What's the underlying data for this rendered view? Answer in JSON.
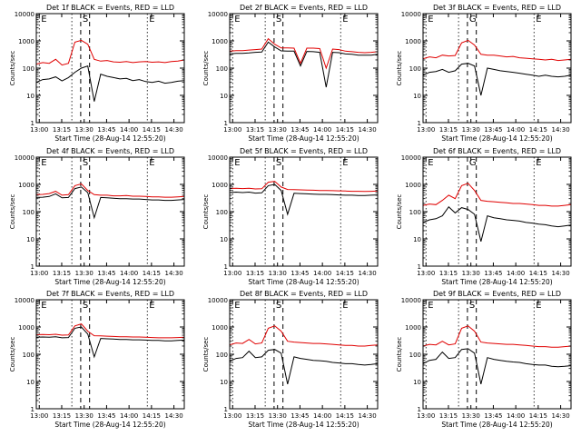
{
  "figure": {
    "background": "#ffffff"
  },
  "chart_data": [
    {
      "type": "line",
      "title": "Det 1f BLACK = Events, RED = LLD",
      "xlabel": "Start Time (28-Aug-14 12:55:20)",
      "ylabel": "Counts/sec",
      "xlim": [
        0,
        100
      ],
      "ylim": [
        1,
        10000
      ],
      "yscale": "log",
      "grid": false,
      "x_ticks": [
        "13:00",
        "13:15",
        "13:30",
        "13:45",
        "14:00",
        "14:15",
        "14:30"
      ],
      "y_ticks": [
        "1",
        "10",
        "100",
        "1000",
        "10000"
      ],
      "markers": [
        {
          "x": 2.0,
          "style": "dotted",
          "label": "E"
        },
        {
          "x": 24.0,
          "style": "dotted",
          "label": ""
        },
        {
          "x": 30.0,
          "style": "dashed",
          "label": "S"
        },
        {
          "x": 36.0,
          "style": "dashed",
          "label": ""
        },
        {
          "x": 75.0,
          "style": "dotted",
          "label": "E"
        }
      ],
      "series": [
        {
          "color": "#e00000",
          "values": [
            140,
            160,
            150,
            210,
            130,
            150,
            900,
            1050,
            750,
            210,
            180,
            190,
            170,
            165,
            175,
            160,
            170,
            175,
            165,
            170,
            160,
            175,
            180,
            200
          ]
        },
        {
          "color": "#000000",
          "values": [
            30,
            38,
            40,
            48,
            34,
            45,
            70,
            100,
            120,
            6,
            60,
            50,
            45,
            40,
            42,
            35,
            38,
            32,
            30,
            33,
            28,
            30,
            33,
            35
          ]
        }
      ]
    },
    {
      "type": "line",
      "title": "Det 2f BLACK = Events, RED = LLD",
      "xlabel": "Start Time (28-Aug-14 12:55:20)",
      "ylabel": "Counts/sec",
      "xlim": [
        0,
        100
      ],
      "ylim": [
        1,
        10000
      ],
      "yscale": "log",
      "grid": false,
      "x_ticks": [
        "13:00",
        "13:15",
        "13:30",
        "13:45",
        "14:00",
        "14:15",
        "14:30"
      ],
      "y_ticks": [
        "1",
        "10",
        "100",
        "1000",
        "10000"
      ],
      "markers": [
        {
          "x": 2.0,
          "style": "dotted",
          "label": "E"
        },
        {
          "x": 24.0,
          "style": "dotted",
          "label": ""
        },
        {
          "x": 30.0,
          "style": "dashed",
          "label": "S"
        },
        {
          "x": 36.0,
          "style": "dashed",
          "label": ""
        },
        {
          "x": 75.0,
          "style": "dotted",
          "label": "E"
        }
      ],
      "series": [
        {
          "color": "#e00000",
          "values": [
            420,
            440,
            440,
            460,
            480,
            500,
            1200,
            750,
            550,
            550,
            540,
            150,
            540,
            540,
            520,
            100,
            500,
            480,
            420,
            400,
            380,
            370,
            380,
            400
          ]
        },
        {
          "color": "#000000",
          "values": [
            330,
            350,
            350,
            360,
            380,
            390,
            900,
            600,
            430,
            420,
            420,
            120,
            410,
            400,
            380,
            20,
            380,
            370,
            330,
            320,
            300,
            300,
            300,
            320
          ]
        }
      ]
    },
    {
      "type": "line",
      "title": "Det 3f BLACK = Events, RED = LLD",
      "xlabel": "Start Time (28-Aug-14 12:55:20)",
      "ylabel": "Counts/sec",
      "xlim": [
        0,
        100
      ],
      "ylim": [
        1,
        10000
      ],
      "yscale": "log",
      "grid": false,
      "x_ticks": [
        "13:00",
        "13:15",
        "13:30",
        "13:45",
        "14:00",
        "14:15",
        "14:30"
      ],
      "y_ticks": [
        "1",
        "10",
        "100",
        "1000",
        "10000"
      ],
      "markers": [
        {
          "x": 2.0,
          "style": "dotted",
          "label": "E"
        },
        {
          "x": 24.0,
          "style": "dotted",
          "label": ""
        },
        {
          "x": 30.0,
          "style": "dashed",
          "label": "G"
        },
        {
          "x": 36.0,
          "style": "dashed",
          "label": ""
        },
        {
          "x": 75.0,
          "style": "dotted",
          "label": "E"
        }
      ],
      "series": [
        {
          "color": "#e00000",
          "values": [
            220,
            260,
            240,
            300,
            280,
            290,
            850,
            1050,
            700,
            320,
            300,
            300,
            280,
            260,
            270,
            240,
            230,
            220,
            210,
            200,
            210,
            190,
            200,
            210
          ]
        },
        {
          "color": "#000000",
          "values": [
            55,
            70,
            75,
            90,
            70,
            80,
            140,
            150,
            120,
            10,
            100,
            90,
            80,
            75,
            70,
            65,
            60,
            55,
            50,
            55,
            50,
            48,
            50,
            55
          ]
        }
      ]
    },
    {
      "type": "line",
      "title": "Det 4f BLACK = Events, RED = LLD",
      "xlabel": "Start Time (28-Aug-14 12:55:20)",
      "ylabel": "Counts/sec",
      "xlim": [
        0,
        100
      ],
      "ylim": [
        1,
        10000
      ],
      "yscale": "log",
      "grid": false,
      "x_ticks": [
        "13:00",
        "13:15",
        "13:30",
        "13:45",
        "14:00",
        "14:15",
        "14:30"
      ],
      "y_ticks": [
        "1",
        "10",
        "100",
        "1000",
        "10000"
      ],
      "markers": [
        {
          "x": 2.0,
          "style": "dotted",
          "label": "E"
        },
        {
          "x": 24.0,
          "style": "dotted",
          "label": ""
        },
        {
          "x": 30.0,
          "style": "dashed",
          "label": "S"
        },
        {
          "x": 36.0,
          "style": "dashed",
          "label": ""
        },
        {
          "x": 75.0,
          "style": "dotted",
          "label": "E"
        }
      ],
      "series": [
        {
          "color": "#e00000",
          "values": [
            420,
            430,
            460,
            560,
            400,
            420,
            900,
            1050,
            600,
            420,
            400,
            400,
            380,
            380,
            390,
            370,
            370,
            360,
            350,
            350,
            340,
            340,
            350,
            360
          ]
        },
        {
          "color": "#000000",
          "values": [
            330,
            340,
            360,
            450,
            320,
            330,
            700,
            800,
            500,
            60,
            330,
            320,
            310,
            300,
            300,
            290,
            290,
            280,
            270,
            270,
            260,
            260,
            270,
            280
          ]
        }
      ]
    },
    {
      "type": "line",
      "title": "Det 5f BLACK = Events, RED = LLD",
      "xlabel": "Start Time (28-Aug-14 12:55:20)",
      "ylabel": "Counts/sec",
      "xlim": [
        0,
        100
      ],
      "ylim": [
        1,
        10000
      ],
      "yscale": "log",
      "grid": false,
      "x_ticks": [
        "13:00",
        "13:15",
        "13:30",
        "13:45",
        "14:00",
        "14:15",
        "14:30"
      ],
      "y_ticks": [
        "1",
        "10",
        "100",
        "1000",
        "10000"
      ],
      "markers": [
        {
          "x": 2.0,
          "style": "dotted",
          "label": "E"
        },
        {
          "x": 24.0,
          "style": "dotted",
          "label": ""
        },
        {
          "x": 30.0,
          "style": "dashed",
          "label": "S"
        },
        {
          "x": 36.0,
          "style": "dashed",
          "label": ""
        },
        {
          "x": 75.0,
          "style": "dotted",
          "label": "E"
        }
      ],
      "series": [
        {
          "color": "#e00000",
          "values": [
            700,
            720,
            700,
            720,
            680,
            690,
            1200,
            1300,
            800,
            650,
            640,
            630,
            620,
            610,
            600,
            600,
            590,
            580,
            570,
            560,
            560,
            550,
            560,
            570
          ]
        },
        {
          "color": "#000000",
          "values": [
            500,
            520,
            500,
            520,
            480,
            490,
            900,
            1000,
            600,
            80,
            470,
            460,
            450,
            440,
            430,
            430,
            420,
            410,
            400,
            400,
            390,
            390,
            400,
            410
          ]
        }
      ]
    },
    {
      "type": "line",
      "title": "Det 6f BLACK = Events, RED = LLD",
      "xlabel": "Start Time (28-Aug-14 12:55:20)",
      "ylabel": "Counts/sec",
      "xlim": [
        0,
        100
      ],
      "ylim": [
        1,
        10000
      ],
      "yscale": "log",
      "grid": false,
      "x_ticks": [
        "13:00",
        "13:15",
        "13:30",
        "13:45",
        "14:00",
        "14:15",
        "14:30"
      ],
      "y_ticks": [
        "1",
        "10",
        "100",
        "1000",
        "10000"
      ],
      "markers": [
        {
          "x": 2.0,
          "style": "dotted",
          "label": "E"
        },
        {
          "x": 24.0,
          "style": "dotted",
          "label": ""
        },
        {
          "x": 30.0,
          "style": "dashed",
          "label": "G"
        },
        {
          "x": 36.0,
          "style": "dashed",
          "label": ""
        },
        {
          "x": 75.0,
          "style": "dotted",
          "label": "E"
        }
      ],
      "series": [
        {
          "color": "#e00000",
          "values": [
            170,
            190,
            180,
            260,
            400,
            300,
            900,
            1100,
            600,
            260,
            240,
            230,
            220,
            210,
            200,
            200,
            190,
            180,
            170,
            170,
            160,
            160,
            170,
            180
          ]
        },
        {
          "color": "#000000",
          "values": [
            40,
            50,
            55,
            70,
            150,
            90,
            140,
            120,
            80,
            8,
            70,
            60,
            55,
            50,
            48,
            45,
            40,
            38,
            35,
            33,
            30,
            28,
            30,
            32
          ]
        }
      ]
    },
    {
      "type": "line",
      "title": "Det 7f BLACK = Events, RED = LLD",
      "xlabel": "Start Time (28-Aug-14 12:55:20)",
      "ylabel": "Counts/sec",
      "xlim": [
        0,
        100
      ],
      "ylim": [
        1,
        10000
      ],
      "yscale": "log",
      "grid": false,
      "x_ticks": [
        "13:00",
        "13:15",
        "13:30",
        "13:45",
        "14:00",
        "14:15",
        "14:30"
      ],
      "y_ticks": [
        "1",
        "10",
        "100",
        "1000",
        "10000"
      ],
      "markers": [
        {
          "x": 2.0,
          "style": "dotted",
          "label": "E"
        },
        {
          "x": 24.0,
          "style": "dotted",
          "label": ""
        },
        {
          "x": 30.0,
          "style": "dashed",
          "label": "S"
        },
        {
          "x": 36.0,
          "style": "dashed",
          "label": ""
        },
        {
          "x": 75.0,
          "style": "dotted",
          "label": "E"
        }
      ],
      "series": [
        {
          "color": "#e00000",
          "values": [
            520,
            530,
            520,
            540,
            500,
            510,
            1100,
            1300,
            700,
            480,
            470,
            460,
            450,
            440,
            440,
            430,
            430,
            420,
            410,
            400,
            400,
            400,
            410,
            420
          ]
        },
        {
          "color": "#000000",
          "values": [
            420,
            430,
            420,
            440,
            400,
            410,
            900,
            1000,
            550,
            80,
            380,
            370,
            360,
            350,
            350,
            340,
            340,
            330,
            320,
            320,
            310,
            310,
            320,
            330
          ]
        }
      ]
    },
    {
      "type": "line",
      "title": "Det 8f BLACK = Events, RED = LLD",
      "xlabel": "Start Time (28-Aug-14 12:55:20)",
      "ylabel": "Counts/sec",
      "xlim": [
        0,
        100
      ],
      "ylim": [
        1,
        10000
      ],
      "yscale": "log",
      "grid": false,
      "x_ticks": [
        "13:00",
        "13:15",
        "13:30",
        "13:45",
        "14:00",
        "14:15",
        "14:30"
      ],
      "y_ticks": [
        "1",
        "10",
        "100",
        "1000",
        "10000"
      ],
      "markers": [
        {
          "x": 2.0,
          "style": "dotted",
          "label": "E"
        },
        {
          "x": 24.0,
          "style": "dotted",
          "label": ""
        },
        {
          "x": 30.0,
          "style": "dashed",
          "label": "S"
        },
        {
          "x": 36.0,
          "style": "dashed",
          "label": ""
        },
        {
          "x": 75.0,
          "style": "dotted",
          "label": "E"
        }
      ],
      "series": [
        {
          "color": "#e00000",
          "values": [
            220,
            260,
            250,
            350,
            240,
            260,
            900,
            1100,
            700,
            300,
            280,
            270,
            260,
            250,
            250,
            240,
            230,
            220,
            210,
            210,
            200,
            200,
            210,
            220
          ]
        },
        {
          "color": "#000000",
          "values": [
            55,
            70,
            75,
            130,
            75,
            80,
            140,
            150,
            110,
            8,
            80,
            70,
            65,
            60,
            58,
            55,
            50,
            48,
            45,
            45,
            42,
            40,
            42,
            45
          ]
        }
      ]
    },
    {
      "type": "line",
      "title": "Det 9f BLACK = Events, RED = LLD",
      "xlabel": "Start Time (28-Aug-14 12:55:20)",
      "ylabel": "Counts/sec",
      "xlim": [
        0,
        100
      ],
      "ylim": [
        1,
        10000
      ],
      "yscale": "log",
      "grid": false,
      "x_ticks": [
        "13:00",
        "13:15",
        "13:30",
        "13:45",
        "14:00",
        "14:15",
        "14:30"
      ],
      "y_ticks": [
        "1",
        "10",
        "100",
        "1000",
        "10000"
      ],
      "markers": [
        {
          "x": 2.0,
          "style": "dotted",
          "label": "E"
        },
        {
          "x": 24.0,
          "style": "dotted",
          "label": ""
        },
        {
          "x": 30.0,
          "style": "dashed",
          "label": "S"
        },
        {
          "x": 36.0,
          "style": "dashed",
          "label": ""
        },
        {
          "x": 75.0,
          "style": "dotted",
          "label": "E"
        }
      ],
      "series": [
        {
          "color": "#e00000",
          "values": [
            200,
            230,
            220,
            300,
            220,
            240,
            900,
            1100,
            700,
            280,
            260,
            250,
            240,
            230,
            230,
            220,
            210,
            200,
            190,
            190,
            180,
            180,
            190,
            200
          ]
        },
        {
          "color": "#000000",
          "values": [
            45,
            60,
            65,
            120,
            70,
            75,
            150,
            160,
            110,
            8,
            75,
            65,
            60,
            55,
            52,
            50,
            45,
            42,
            40,
            40,
            36,
            35,
            36,
            38
          ]
        }
      ]
    }
  ]
}
